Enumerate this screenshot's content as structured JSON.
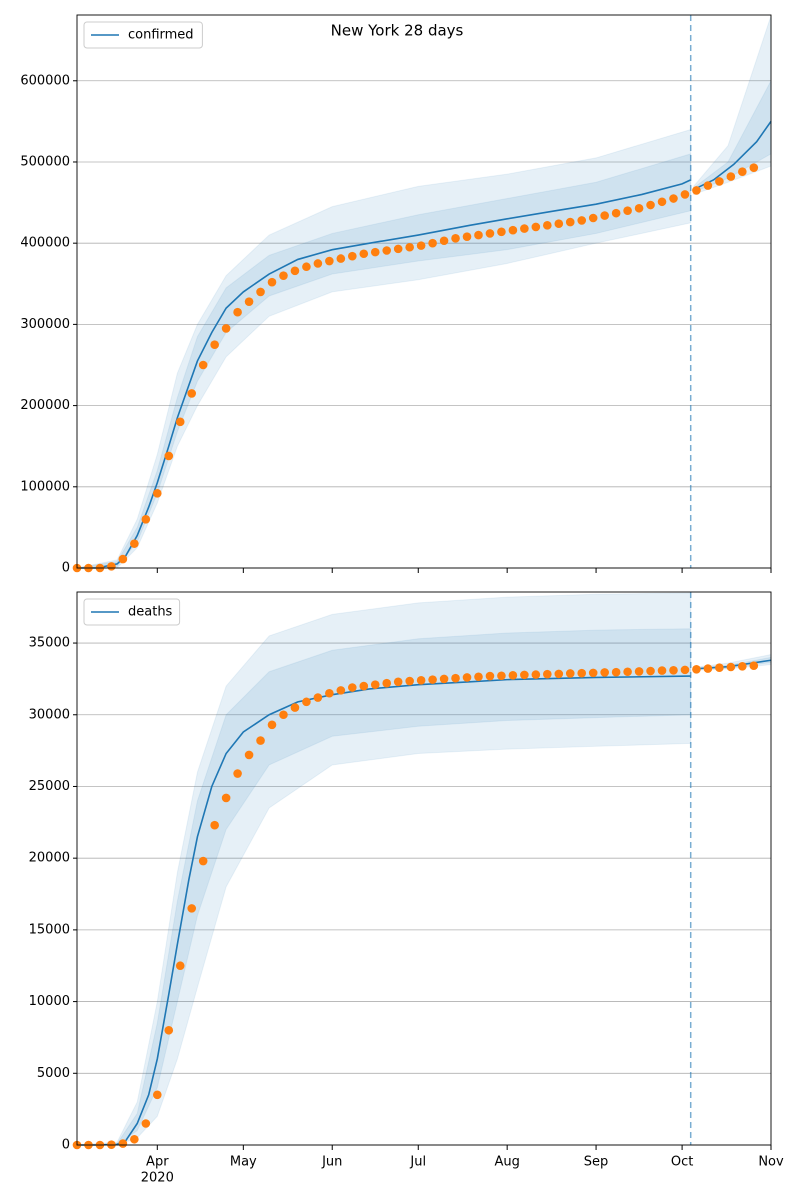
{
  "chart_data": [
    {
      "type": "line",
      "title": "New York 28 days",
      "legend": "upper left",
      "grid": true,
      "xlim": [
        63,
        305
      ],
      "xticks": [
        91,
        121,
        152,
        182,
        213,
        244,
        274,
        305
      ],
      "ylim": [
        0,
        681000
      ],
      "yticks": [
        0,
        100000,
        200000,
        300000,
        400000,
        500000,
        600000
      ],
      "vline": 277,
      "series": [
        {
          "name": "confirmed",
          "color": "#1f77b4",
          "x": [
            63,
            70,
            77,
            80,
            84,
            88,
            91,
            95,
            98,
            102,
            105,
            110,
            115,
            121,
            130,
            140,
            152,
            165,
            182,
            200,
            213,
            230,
            244,
            260,
            274,
            277,
            278,
            278,
            285,
            292,
            300,
            305
          ],
          "values": [
            0,
            0,
            5000,
            15000,
            40000,
            75000,
            105000,
            150000,
            185000,
            225000,
            255000,
            290000,
            320000,
            340000,
            362000,
            380000,
            392000,
            400000,
            410000,
            422000,
            430000,
            440000,
            448000,
            460000,
            473000,
            478000,
            null,
            466000,
            478000,
            497000,
            525000,
            550000
          ]
        }
      ],
      "bands": [
        {
          "x": [
            63,
            77,
            84,
            91,
            98,
            105,
            115,
            130,
            152,
            182,
            213,
            244,
            277,
            278,
            278,
            290,
            305
          ],
          "lower": [
            0,
            0,
            25000,
            80000,
            150000,
            200000,
            260000,
            310000,
            340000,
            355000,
            375000,
            400000,
            425000,
            null,
            460000,
            475000,
            495000
          ],
          "upper": [
            0,
            10000,
            60000,
            140000,
            240000,
            300000,
            360000,
            410000,
            445000,
            470000,
            485000,
            505000,
            540000,
            null,
            470000,
            520000,
            680000
          ]
        },
        {
          "x": [
            63,
            77,
            84,
            91,
            98,
            105,
            115,
            130,
            152,
            182,
            213,
            244,
            277,
            278,
            278,
            290,
            305
          ],
          "lower": [
            0,
            2000,
            32000,
            92000,
            168000,
            230000,
            290000,
            335000,
            362000,
            378000,
            392000,
            412000,
            440000,
            null,
            463000,
            480000,
            510000
          ],
          "upper": [
            0,
            8000,
            50000,
            120000,
            210000,
            285000,
            345000,
            385000,
            412000,
            435000,
            455000,
            475000,
            510000,
            null,
            468000,
            500000,
            600000
          ]
        }
      ],
      "observed": {
        "color": "#ff7f0e",
        "x": [
          63,
          67,
          71,
          75,
          79,
          83,
          87,
          91,
          95,
          99,
          103,
          107,
          111,
          115,
          119,
          123,
          127,
          131,
          135,
          139,
          143,
          147,
          151,
          155,
          159,
          163,
          167,
          171,
          175,
          179,
          183,
          187,
          191,
          195,
          199,
          203,
          207,
          211,
          215,
          219,
          223,
          227,
          231,
          235,
          239,
          243,
          247,
          251,
          255,
          259,
          263,
          267,
          271,
          275,
          279,
          283,
          287,
          291,
          295,
          299
        ],
        "values": [
          0,
          0,
          0,
          2000,
          11000,
          30000,
          60000,
          92000,
          138000,
          180000,
          215000,
          250000,
          275000,
          295000,
          315000,
          328000,
          340000,
          352000,
          360000,
          366000,
          371000,
          375000,
          378000,
          381000,
          384000,
          387000,
          389000,
          391000,
          393000,
          395000,
          397000,
          400000,
          403000,
          406000,
          408000,
          410000,
          412000,
          414000,
          416000,
          418000,
          420000,
          422000,
          424000,
          426000,
          428000,
          431000,
          434000,
          437000,
          440000,
          443000,
          447000,
          451000,
          455000,
          460000,
          465000,
          471000,
          476000,
          482000,
          488000,
          493000
        ]
      }
    },
    {
      "type": "line",
      "legend": "upper left",
      "grid": true,
      "xlim": [
        63,
        305
      ],
      "xticks": [
        {
          "value": 91,
          "label": "Apr"
        },
        {
          "value": 121,
          "label": "May"
        },
        {
          "value": 152,
          "label": "Jun"
        },
        {
          "value": 182,
          "label": "Jul"
        },
        {
          "value": 213,
          "label": "Aug"
        },
        {
          "value": 244,
          "label": "Sep"
        },
        {
          "value": 274,
          "label": "Oct"
        },
        {
          "value": 305,
          "label": "Nov"
        }
      ],
      "year_label": "2020",
      "ylim": [
        0,
        38560
      ],
      "yticks": [
        0,
        5000,
        10000,
        15000,
        20000,
        25000,
        30000,
        35000
      ],
      "vline": 277,
      "series": [
        {
          "name": "deaths",
          "color": "#1f77b4",
          "x": [
            63,
            70,
            77,
            80,
            84,
            88,
            91,
            95,
            98,
            102,
            105,
            110,
            115,
            121,
            130,
            140,
            152,
            165,
            182,
            200,
            213,
            244,
            277,
            278,
            278,
            290,
            305
          ],
          "values": [
            0,
            0,
            50,
            300,
            1500,
            3500,
            6000,
            10500,
            14000,
            18500,
            21500,
            25000,
            27300,
            28800,
            30000,
            30900,
            31400,
            31800,
            32100,
            32300,
            32450,
            32600,
            32700,
            null,
            33200,
            33350,
            33800
          ]
        }
      ],
      "bands": [
        {
          "x": [
            63,
            77,
            84,
            91,
            98,
            105,
            115,
            130,
            152,
            182,
            213,
            244,
            277,
            278,
            278,
            290,
            305
          ],
          "lower": [
            0,
            0,
            500,
            2000,
            6000,
            11000,
            18000,
            23500,
            26500,
            27300,
            27600,
            27800,
            28000,
            null,
            33100,
            33200,
            33500
          ],
          "upper": [
            0,
            200,
            3000,
            10000,
            19000,
            26000,
            32000,
            35500,
            37000,
            37800,
            38200,
            38400,
            38500,
            null,
            33300,
            33600,
            34200
          ]
        },
        {
          "x": [
            63,
            77,
            84,
            91,
            98,
            105,
            115,
            130,
            152,
            182,
            213,
            244,
            277,
            278,
            278,
            290,
            305
          ],
          "lower": [
            0,
            20,
            1000,
            4000,
            10000,
            16000,
            22000,
            26500,
            28500,
            29200,
            29600,
            29800,
            30000,
            null,
            33150,
            33250,
            33650
          ],
          "upper": [
            0,
            100,
            2200,
            8500,
            17000,
            24000,
            30000,
            33000,
            34500,
            35300,
            35700,
            35900,
            36000,
            null,
            33250,
            33450,
            34000
          ]
        }
      ],
      "observed": {
        "color": "#ff7f0e",
        "x": [
          63,
          67,
          71,
          75,
          79,
          83,
          87,
          91,
          95,
          99,
          103,
          107,
          111,
          115,
          119,
          123,
          127,
          131,
          135,
          139,
          143,
          147,
          151,
          155,
          159,
          163,
          167,
          171,
          175,
          179,
          183,
          187,
          191,
          195,
          199,
          203,
          207,
          211,
          215,
          219,
          223,
          227,
          231,
          235,
          239,
          243,
          247,
          251,
          255,
          259,
          263,
          267,
          271,
          275,
          279,
          283,
          287,
          291,
          295,
          299
        ],
        "values": [
          0,
          0,
          0,
          20,
          100,
          400,
          1500,
          3500,
          8000,
          12500,
          16500,
          19800,
          22300,
          24200,
          25900,
          27200,
          28200,
          29300,
          30000,
          30500,
          30900,
          31200,
          31500,
          31700,
          31900,
          32000,
          32100,
          32200,
          32300,
          32350,
          32400,
          32450,
          32500,
          32550,
          32600,
          32650,
          32700,
          32720,
          32750,
          32780,
          32800,
          32830,
          32850,
          32880,
          32900,
          32920,
          32950,
          32970,
          33000,
          33020,
          33050,
          33080,
          33100,
          33130,
          33170,
          33220,
          33280,
          33330,
          33380,
          33420
        ]
      }
    }
  ]
}
